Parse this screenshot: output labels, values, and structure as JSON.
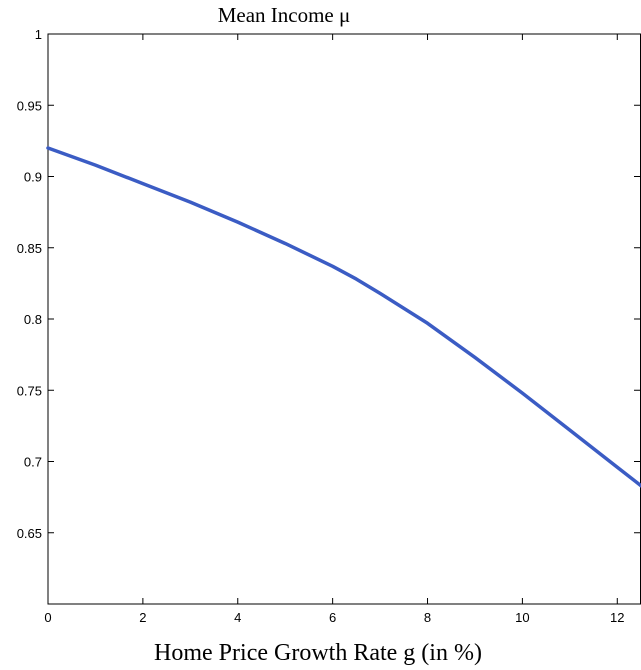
{
  "chart_data": {
    "type": "line",
    "title": "Mean Income μ",
    "xlabel": "Home Price Growth Rate g (in %)",
    "ylabel": "",
    "xlim": [
      0,
      12.5
    ],
    "ylim": [
      0.6,
      1.0
    ],
    "xticks": [
      0,
      2,
      4,
      6,
      8,
      10,
      12
    ],
    "xtick_labels": [
      "0",
      "2",
      "4",
      "6",
      "8",
      "10",
      "12"
    ],
    "yticks": [
      0.65,
      0.7,
      0.75,
      0.8,
      0.85,
      0.9,
      0.95,
      1.0
    ],
    "ytick_labels": [
      "0.65",
      "0.7",
      "0.75",
      "0.8",
      "0.85",
      "0.9",
      "0.95",
      "1"
    ],
    "grid": false,
    "colors": {
      "line": "#3b5cc4",
      "axes": "#000000",
      "background": "#ffffff"
    },
    "series": [
      {
        "x": [
          0,
          1,
          2,
          3,
          4,
          5,
          6,
          6.5,
          7,
          8,
          9,
          10,
          11,
          12,
          12.5
        ],
        "y": [
          0.92,
          0.908,
          0.895,
          0.882,
          0.868,
          0.853,
          0.837,
          0.828,
          0.818,
          0.797,
          0.773,
          0.748,
          0.722,
          0.696,
          0.683
        ]
      }
    ]
  }
}
